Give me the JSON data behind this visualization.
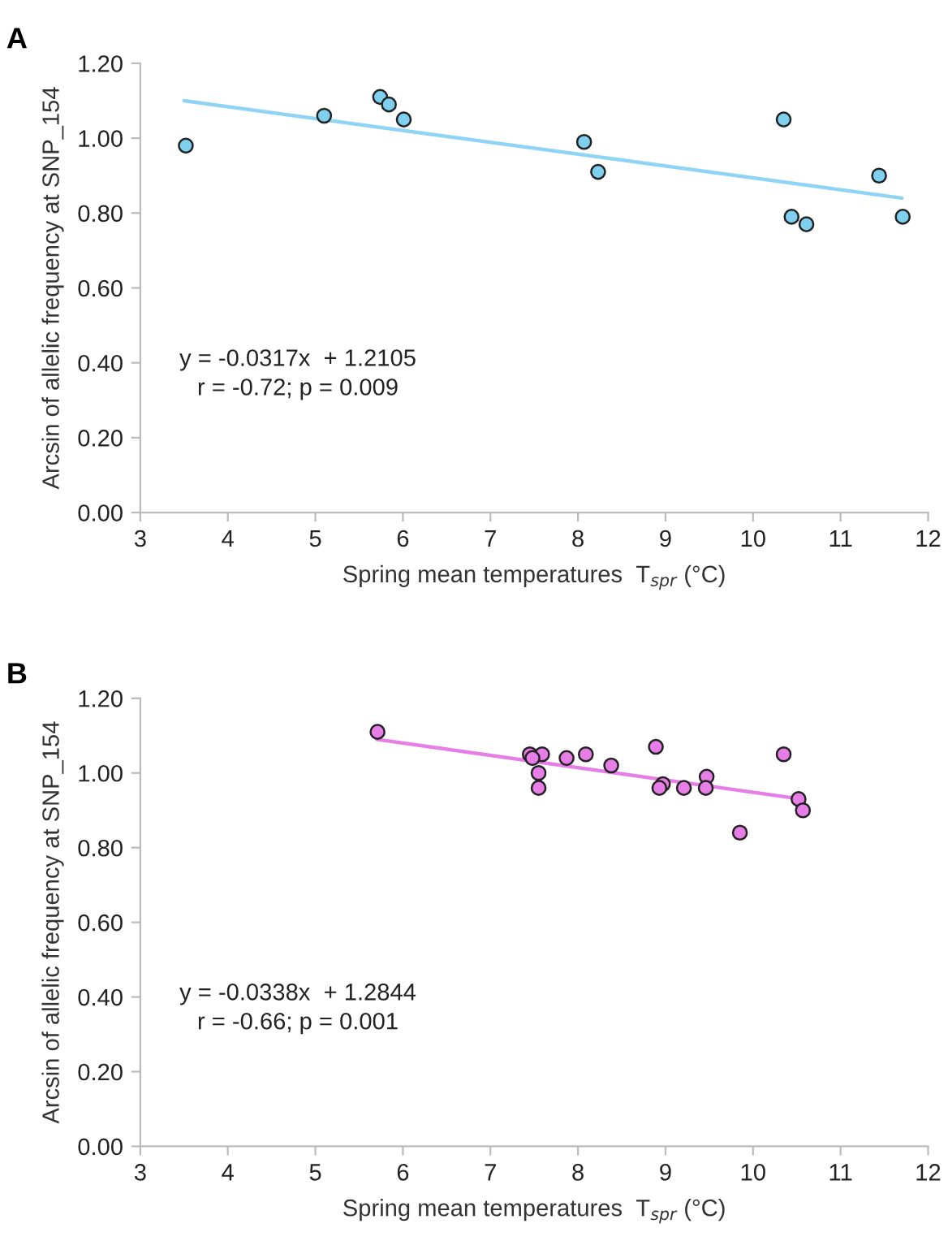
{
  "chart_data": [
    {
      "type": "scatter",
      "title": "A",
      "xlabel": "Spring mean temperatures  T$_{spr}$ (°C)",
      "ylabel": "Arcsin of allelic frequency at SNP_154",
      "xlim": [
        3,
        12
      ],
      "xticks": [
        3,
        4,
        5,
        6,
        7,
        8,
        9,
        10,
        11,
        12
      ],
      "ylim": [
        0,
        1.2
      ],
      "yticks": [
        {
          "value": 0,
          "label": "0.00"
        },
        {
          "value": 0.2,
          "label": "0.20"
        },
        {
          "value": 0.4,
          "label": "0.40"
        },
        {
          "value": 0.6,
          "label": "0.60"
        },
        {
          "value": 0.8,
          "label": "0.80"
        },
        {
          "value": 1.0,
          "label": "1.00"
        },
        {
          "value": 1.2,
          "label": "1.20"
        }
      ],
      "grid": false,
      "series": [
        {
          "marker": "circle",
          "color": "#7fcfee",
          "x": [
            3.52,
            5.1,
            5.74,
            5.84,
            6.01,
            8.07,
            8.23,
            10.35,
            10.44,
            10.61,
            11.44,
            11.71
          ],
          "values": [
            0.98,
            1.06,
            1.11,
            1.09,
            1.05,
            0.99,
            0.91,
            1.05,
            0.79,
            0.77,
            0.9,
            0.79
          ]
        },
        {
          "type": "line",
          "color": "#8fd3f5",
          "x": [
            3.5,
            11.7
          ],
          "values": [
            1.1,
            0.84
          ]
        }
      ],
      "annotations": [
        "y = -0.0317x  + 1.2105",
        "r = -0.72; p = 0.009"
      ]
    },
    {
      "type": "scatter",
      "title": "B",
      "xlabel": "Spring mean temperatures  T$_{spr}$ (°C)",
      "ylabel": "Arcsin of allelic frequency at SNP_154",
      "xlim": [
        3,
        12
      ],
      "xticks": [
        3,
        4,
        5,
        6,
        7,
        8,
        9,
        10,
        11,
        12
      ],
      "ylim": [
        0,
        1.2
      ],
      "yticks": [
        {
          "value": 0,
          "label": "0.00"
        },
        {
          "value": 0.2,
          "label": "0.20"
        },
        {
          "value": 0.4,
          "label": "0.40"
        },
        {
          "value": 0.6,
          "label": "0.60"
        },
        {
          "value": 0.8,
          "label": "0.80"
        },
        {
          "value": 1.0,
          "label": "1.00"
        },
        {
          "value": 1.2,
          "label": "1.20"
        }
      ],
      "grid": false,
      "series": [
        {
          "marker": "circle",
          "color": "#e77de6",
          "x": [
            5.71,
            7.45,
            7.59,
            7.48,
            7.55,
            7.55,
            7.87,
            8.09,
            8.38,
            8.89,
            8.97,
            8.93,
            9.21,
            9.47,
            9.46,
            9.85,
            10.35,
            10.52,
            10.57
          ],
          "values": [
            1.11,
            1.05,
            1.05,
            1.04,
            1.0,
            0.96,
            1.04,
            1.05,
            1.02,
            1.07,
            0.97,
            0.96,
            0.96,
            0.99,
            0.96,
            0.84,
            1.05,
            0.93,
            0.9
          ]
        },
        {
          "type": "line",
          "color": "#e67ee8",
          "x": [
            5.7,
            10.55
          ],
          "values": [
            1.09,
            0.93
          ]
        }
      ],
      "annotations": [
        "y = -0.0338x  + 1.2844",
        "r = -0.66; p = 0.001"
      ]
    }
  ]
}
